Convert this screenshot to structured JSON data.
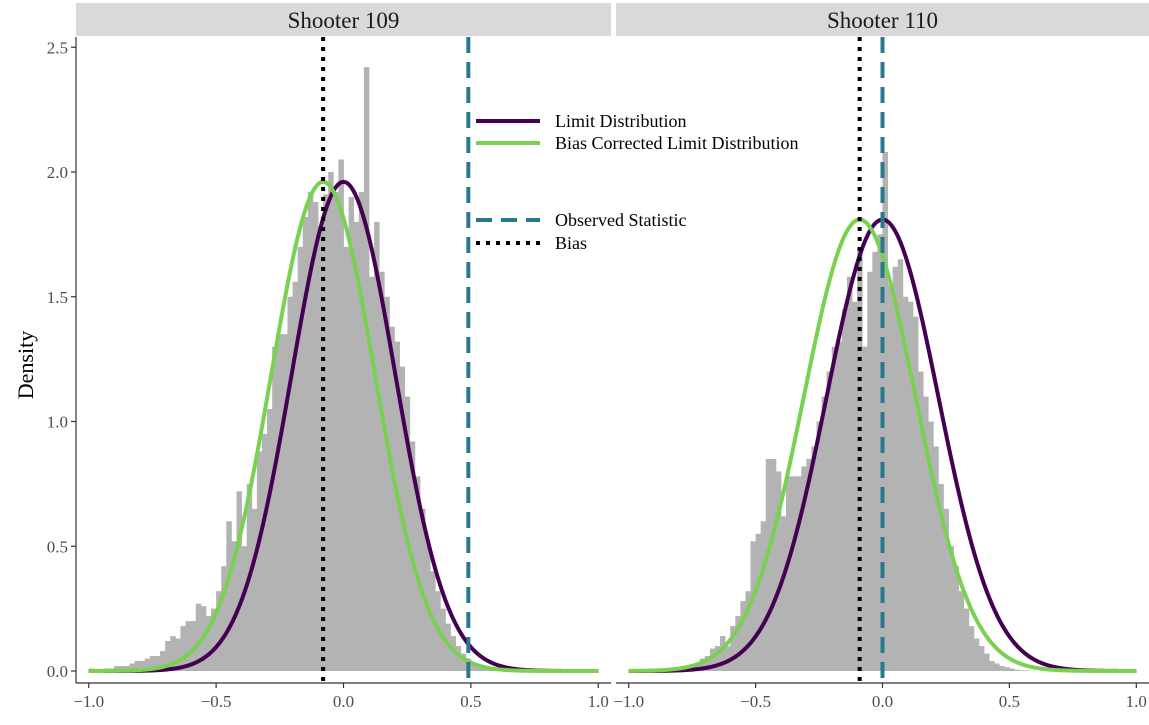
{
  "chart_data": {
    "type": "histogram-with-density",
    "ylabel": "Density",
    "xlim": [
      -1.05,
      1.05
    ],
    "ylim": [
      -0.05,
      2.55
    ],
    "x_ticks": [
      -1.0,
      -0.5,
      0.0,
      0.5,
      1.0
    ],
    "x_tick_labels": [
      "−1.0",
      "−0.5",
      "0.0",
      "0.5",
      "1.0"
    ],
    "y_ticks": [
      0.0,
      0.5,
      1.0,
      1.5,
      2.0,
      2.5
    ],
    "y_tick_labels": [
      "0.0",
      "0.5",
      "1.0",
      "1.5",
      "2.0",
      "2.5"
    ],
    "grid": false,
    "legend_position": "top-center",
    "legend": [
      {
        "label": "Limit Distribution",
        "color": "#440154",
        "style": "solid"
      },
      {
        "label": "Bias Corrected Limit Distribution",
        "color": "#7AD151",
        "style": "solid"
      },
      {
        "label": "Observed Statistic",
        "color": "#2A788E",
        "style": "dashed"
      },
      {
        "label": "Bias",
        "color": "#000000",
        "style": "dotted"
      }
    ],
    "colors": {
      "histogram": "#B3B3B3",
      "strip": "#D9D9D9",
      "axis": "#333333"
    },
    "panels": [
      {
        "title": "Shooter 109",
        "observed_statistic": 0.49,
        "bias": -0.08,
        "limit_distribution": {
          "mean": 0.0,
          "sd": 0.2035
        },
        "bias_corrected_limit_distribution": {
          "mean": -0.08,
          "sd": 0.2035
        },
        "histogram": {
          "bin_width": 0.02,
          "bin_start": -1.0,
          "density": [
            0.01,
            0.0,
            0.0,
            0.01,
            0.01,
            0.02,
            0.02,
            0.02,
            0.03,
            0.04,
            0.04,
            0.05,
            0.06,
            0.06,
            0.08,
            0.12,
            0.14,
            0.13,
            0.18,
            0.2,
            0.2,
            0.27,
            0.26,
            0.22,
            0.25,
            0.32,
            0.42,
            0.6,
            0.52,
            0.72,
            0.5,
            0.75,
            0.65,
            0.88,
            0.95,
            1.05,
            1.3,
            1.35,
            1.35,
            1.5,
            1.56,
            1.7,
            1.82,
            1.92,
            1.88,
            1.78,
            1.91,
            2.0,
            1.92,
            2.05,
            1.7,
            1.9,
            1.8,
            1.92,
            2.42,
            1.58,
            1.8,
            1.6,
            1.5,
            1.38,
            1.32,
            1.22,
            1.1,
            0.92,
            0.78,
            0.65,
            0.52,
            0.4,
            0.32,
            0.25,
            0.19,
            0.14,
            0.1,
            0.07,
            0.05,
            0.03,
            0.02,
            0.015,
            0.01,
            0.005,
            0.004,
            0.003,
            0.002,
            0.001,
            0.0,
            0.0,
            0.0,
            0.0,
            0.0,
            0.0,
            0.0,
            0.0,
            0.0,
            0.0,
            0.0,
            0.0,
            0.0,
            0.0,
            0.0,
            0.0
          ]
        }
      },
      {
        "title": "Shooter 110",
        "observed_statistic": 0.0,
        "bias": -0.09,
        "limit_distribution": {
          "mean": 0.0,
          "sd": 0.2205
        },
        "bias_corrected_limit_distribution": {
          "mean": -0.09,
          "sd": 0.2205
        },
        "histogram": {
          "bin_width": 0.02,
          "bin_start": -1.0,
          "density": [
            0.0,
            0.0,
            0.0,
            0.0,
            0.0,
            0.0,
            0.0,
            0.0,
            0.0,
            0.01,
            0.01,
            0.02,
            0.02,
            0.03,
            0.05,
            0.06,
            0.09,
            0.1,
            0.14,
            0.1,
            0.18,
            0.22,
            0.28,
            0.32,
            0.52,
            0.55,
            0.6,
            0.85,
            0.85,
            0.8,
            0.62,
            0.78,
            0.78,
            0.78,
            0.82,
            0.85,
            0.9,
            1.0,
            1.1,
            1.2,
            1.3,
            1.32,
            1.45,
            1.58,
            1.48,
            1.7,
            1.3,
            1.6,
            1.68,
            1.75,
            2.08,
            1.55,
            1.62,
            1.65,
            1.5,
            1.48,
            1.42,
            1.2,
            1.1,
            1.0,
            0.9,
            0.75,
            0.65,
            0.5,
            0.42,
            0.32,
            0.25,
            0.18,
            0.13,
            0.1,
            0.07,
            0.04,
            0.03,
            0.02,
            0.015,
            0.01,
            0.005,
            0.003,
            0.002,
            0.001,
            0.0,
            0.0,
            0.0,
            0.0,
            0.0,
            0.0,
            0.0,
            0.0,
            0.0,
            0.0,
            0.0,
            0.0,
            0.0,
            0.0,
            0.0,
            0.0,
            0.0,
            0.0,
            0.0,
            0.0
          ]
        }
      }
    ]
  }
}
